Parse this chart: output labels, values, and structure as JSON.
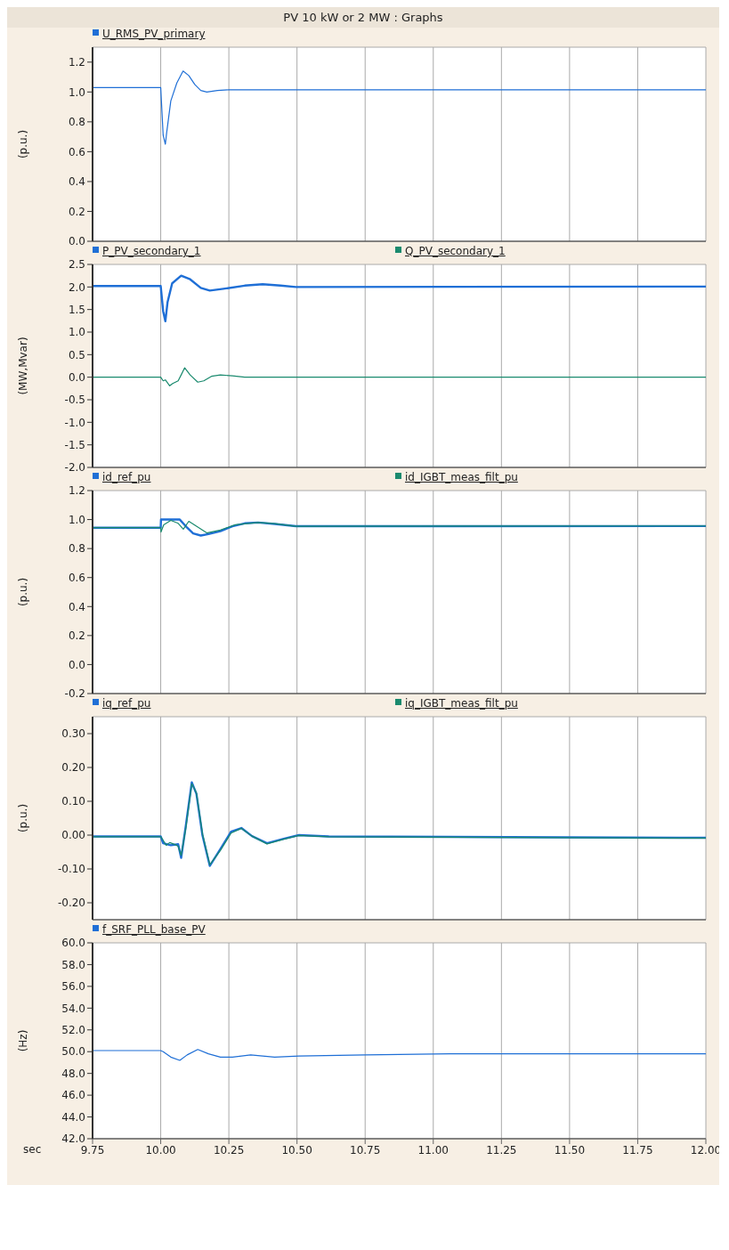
{
  "chart_data": [
    {
      "type": "line",
      "title": "PV 10 kW or 2 MW : Graphs",
      "ylabel": "(p.u.)",
      "xlim": [
        9.75,
        12
      ],
      "xticks": [
        9.75,
        10,
        10.25,
        10.5,
        10.75,
        11,
        11.25,
        11.5,
        11.75,
        12
      ],
      "ylim": [
        0,
        1.3
      ],
      "yticks": [
        {
          "value": 0,
          "label": "0.0"
        },
        0.2,
        0.4,
        0.6,
        0.8,
        {
          "value": 1,
          "label": "1.0"
        },
        1.2
      ],
      "tick_labels": "y",
      "grid": true,
      "legend": "top",
      "marker": "none",
      "line_style": "solid",
      "series": [
        {
          "name": "U_RMS_PV_primary",
          "color": "#1f6fd6",
          "x": [
            9.75,
            10.0,
            10.009,
            10.017,
            10.022,
            10.037,
            10.059,
            10.082,
            10.103,
            10.125,
            10.147,
            10.169,
            10.208,
            10.25,
            12.0
          ],
          "values": [
            1.03,
            1.03,
            0.71,
            0.65,
            0.73,
            0.94,
            1.06,
            1.14,
            1.11,
            1.05,
            1.01,
            1.0,
            1.01,
            1.015,
            1.015
          ]
        }
      ]
    },
    {
      "type": "line",
      "ylabel": "(MW,Mvar)",
      "xlim": [
        9.75,
        12
      ],
      "xticks": [
        9.75,
        10,
        10.25,
        10.5,
        10.75,
        11,
        11.25,
        11.5,
        11.75,
        12
      ],
      "ylim": [
        -2,
        2.5
      ],
      "yticks": [
        {
          "value": -2,
          "label": "-2.0"
        },
        -1.5,
        {
          "value": -1,
          "label": "-1.0"
        },
        -0.5,
        {
          "value": 0,
          "label": "0.0"
        },
        0.5,
        {
          "value": 1,
          "label": "1.0"
        },
        1.5,
        {
          "value": 2,
          "label": "2.0"
        },
        2.5
      ],
      "tick_labels": "y",
      "grid": true,
      "legend": "top",
      "marker": "none",
      "line_style": "solid",
      "series": [
        {
          "name": "P_PV_secondary_1",
          "color": "#1f6fd6",
          "x": [
            9.75,
            10.0,
            10.009,
            10.017,
            10.025,
            10.042,
            10.075,
            10.108,
            10.147,
            10.18,
            10.23,
            10.308,
            10.374,
            10.44,
            10.496,
            12.0
          ],
          "values": [
            2.02,
            2.02,
            1.46,
            1.24,
            1.66,
            2.08,
            2.25,
            2.17,
            1.98,
            1.92,
            1.96,
            2.03,
            2.06,
            2.03,
            2.0,
            2.01
          ]
        },
        {
          "name": "Q_PV_secondary_1",
          "color": "#1a8a6e",
          "x": [
            9.75,
            10.0,
            10.009,
            10.017,
            10.033,
            10.044,
            10.064,
            10.075,
            10.088,
            10.108,
            10.136,
            10.158,
            10.186,
            10.219,
            10.263,
            10.308,
            12.0
          ],
          "values": [
            0.0,
            0.0,
            -0.08,
            -0.06,
            -0.19,
            -0.14,
            -0.08,
            0.05,
            0.21,
            0.05,
            -0.11,
            -0.08,
            0.02,
            0.05,
            0.03,
            0.0,
            0.0
          ]
        }
      ]
    },
    {
      "type": "line",
      "ylabel": "(p.u.)",
      "xlim": [
        9.75,
        12
      ],
      "xticks": [
        9.75,
        10,
        10.25,
        10.5,
        10.75,
        11,
        11.25,
        11.5,
        11.75,
        12
      ],
      "ylim": [
        -0.2,
        1.2
      ],
      "yticks": [
        -0.2,
        {
          "value": 0,
          "label": "0.0"
        },
        0.2,
        0.4,
        0.6,
        0.8,
        {
          "value": 1,
          "label": "1.0"
        },
        1.2
      ],
      "tick_labels": "y",
      "grid": true,
      "legend": "top",
      "marker": "none",
      "line_style": "solid",
      "series": [
        {
          "name": "id_ref_pu",
          "color": "#1f6fd6",
          "x": [
            9.75,
            10.0,
            10.001,
            10.07,
            10.097,
            10.119,
            10.147,
            10.175,
            10.219,
            10.263,
            10.308,
            10.357,
            10.418,
            10.496,
            12.0
          ],
          "values": [
            0.944,
            0.944,
            1.0,
            1.0,
            0.944,
            0.904,
            0.89,
            0.9,
            0.92,
            0.954,
            0.974,
            0.98,
            0.97,
            0.954,
            0.955
          ]
        },
        {
          "name": "id_IGBT_meas_filt_pu",
          "color": "#1a8a6e",
          "x": [
            9.75,
            10.0,
            10.001,
            10.011,
            10.037,
            10.064,
            10.083,
            10.103,
            10.131,
            10.169,
            10.219,
            10.274,
            10.357,
            10.418,
            10.496,
            12.0
          ],
          "values": [
            0.944,
            0.944,
            0.914,
            0.964,
            0.994,
            0.974,
            0.934,
            0.988,
            0.954,
            0.908,
            0.928,
            0.964,
            0.98,
            0.972,
            0.954,
            0.956
          ]
        }
      ]
    },
    {
      "type": "line",
      "ylabel": "(p.u.)",
      "xlim": [
        9.75,
        12
      ],
      "xticks": [
        9.75,
        10,
        10.25,
        10.5,
        10.75,
        11,
        11.25,
        11.5,
        11.75,
        12
      ],
      "ylim": [
        -0.25,
        0.35
      ],
      "yticks": [
        {
          "value": -0.2,
          "label": "-0.20"
        },
        {
          "value": -0.1,
          "label": "-0.10"
        },
        {
          "value": 0,
          "label": "0.00"
        },
        {
          "value": 0.1,
          "label": "0.10"
        },
        {
          "value": 0.2,
          "label": "0.20"
        },
        {
          "value": 0.3,
          "label": "0.30"
        }
      ],
      "tick_labels": "y",
      "grid": true,
      "legend": "top",
      "marker": "none",
      "line_style": "solid",
      "series": [
        {
          "name": "iq_ref_pu",
          "color": "#1f6fd6",
          "x": [
            9.75,
            10.0,
            10.009,
            10.037,
            10.064,
            10.075,
            10.092,
            10.114,
            10.131,
            10.153,
            10.18,
            10.219,
            10.258,
            10.296,
            10.335,
            10.39,
            10.451,
            10.507,
            10.617,
            12.0
          ],
          "values": [
            -0.004,
            -0.004,
            -0.024,
            -0.03,
            -0.027,
            -0.067,
            0.027,
            0.156,
            0.122,
            0.0,
            -0.091,
            -0.041,
            0.01,
            0.021,
            -0.003,
            -0.024,
            -0.011,
            0.0,
            -0.004,
            -0.008
          ]
        },
        {
          "name": "iq_IGBT_meas_filt_pu",
          "color": "#1a8a6e",
          "x": [
            9.75,
            10.0,
            10.009,
            10.02,
            10.033,
            10.053,
            10.064,
            10.075,
            10.092,
            10.114,
            10.131,
            10.153,
            10.18,
            10.219,
            10.258,
            10.296,
            10.335,
            10.39,
            10.451,
            10.507,
            10.617,
            12.0
          ],
          "values": [
            -0.005,
            -0.005,
            -0.015,
            -0.03,
            -0.022,
            -0.028,
            -0.033,
            -0.06,
            0.02,
            0.152,
            0.125,
            0.005,
            -0.088,
            -0.045,
            0.006,
            0.02,
            -0.003,
            -0.026,
            -0.012,
            -0.001,
            -0.005,
            -0.009
          ]
        }
      ]
    },
    {
      "type": "line",
      "xlabel": "sec",
      "ylabel": "(Hz)",
      "xlim": [
        9.75,
        12
      ],
      "xticks": [
        9.75,
        {
          "value": 10,
          "label": "10.00"
        },
        10.25,
        {
          "value": 10.5,
          "label": "10.50"
        },
        10.75,
        {
          "value": 11,
          "label": "11.00"
        },
        11.25,
        {
          "value": 11.5,
          "label": "11.50"
        },
        11.75,
        {
          "value": 12,
          "label": "12.00"
        }
      ],
      "ylim": [
        42,
        60
      ],
      "yticks": [
        {
          "value": 42,
          "label": "42.0"
        },
        {
          "value": 44,
          "label": "44.0"
        },
        {
          "value": 46,
          "label": "46.0"
        },
        {
          "value": 48,
          "label": "48.0"
        },
        {
          "value": 50,
          "label": "50.0"
        },
        {
          "value": 52,
          "label": "52.0"
        },
        {
          "value": 54,
          "label": "54.0"
        },
        {
          "value": 56,
          "label": "56.0"
        },
        {
          "value": 58,
          "label": "58.0"
        },
        {
          "value": 60,
          "label": "60.0"
        }
      ],
      "grid": true,
      "legend": "top",
      "marker": "none",
      "line_style": "solid",
      "series": [
        {
          "name": "f_SRF_PLL_base_PV",
          "color": "#1f6fd6",
          "x": [
            9.75,
            10.0,
            10.009,
            10.037,
            10.07,
            10.097,
            10.136,
            10.175,
            10.219,
            10.263,
            10.33,
            10.418,
            10.507,
            10.75,
            11.06,
            12.0
          ],
          "values": [
            50.1,
            50.1,
            50.0,
            49.5,
            49.2,
            49.7,
            50.2,
            49.8,
            49.5,
            49.5,
            49.7,
            49.5,
            49.6,
            49.7,
            49.8,
            49.8
          ]
        }
      ]
    }
  ]
}
